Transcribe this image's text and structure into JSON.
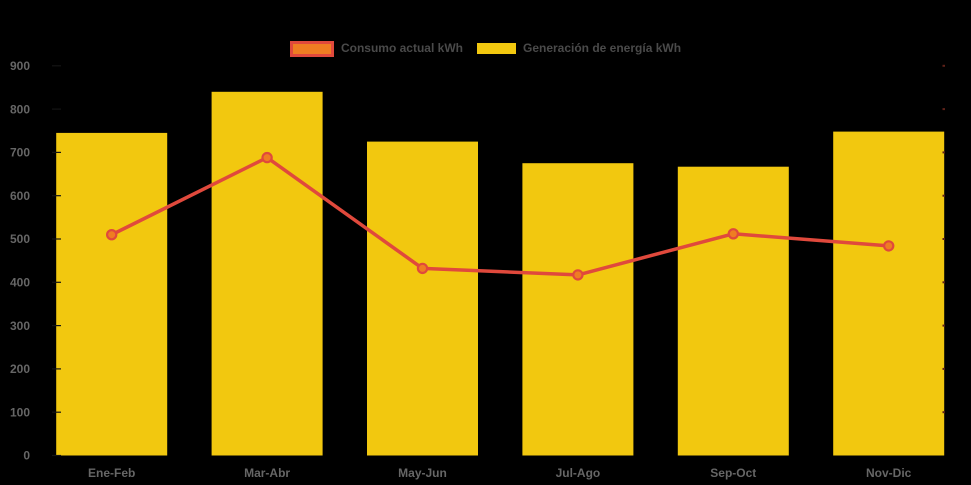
{
  "colors": {
    "background": "#000000",
    "bar": "#F2C80F",
    "line": "#E0493C",
    "marker_fill": "#EF7D22",
    "axis_text": "#666666",
    "legend_text": "#4A4A4A"
  },
  "legend": {
    "items": [
      {
        "label": "Consumo actual kWh"
      },
      {
        "label": "Generación de energía kWh"
      }
    ]
  },
  "chart_data": {
    "type": "bar",
    "subtype": "bar-line-combo",
    "categories": [
      "Ene-Feb",
      "Mar-Abr",
      "May-Jun",
      "Jul-Ago",
      "Sep-Oct",
      "Nov-Dic"
    ],
    "series": [
      {
        "name": "Generación de energía kWh",
        "type": "bar",
        "color": "#F2C80F",
        "values": [
          745,
          840,
          725,
          675,
          667,
          748
        ]
      },
      {
        "name": "Consumo actual kWh",
        "type": "line",
        "color": "#E0493C",
        "marker_fill": "#EF7D22",
        "values": [
          510,
          688,
          432,
          417,
          512,
          484
        ]
      }
    ],
    "ylim": [
      0,
      900
    ],
    "ytick_step": 100,
    "xlabel": "",
    "ylabel": "",
    "grid": false,
    "legend_position": "top-center"
  }
}
